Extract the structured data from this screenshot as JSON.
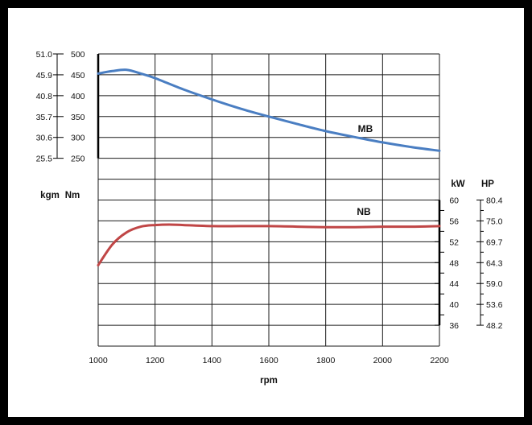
{
  "colors": {
    "frame": "#000000",
    "background": "#ffffff",
    "grid": "#1a1a1a",
    "torque": "#4a7ec2",
    "power": "#c04646"
  },
  "chart_data": {
    "type": "line",
    "title": "",
    "xlabel": "rpm",
    "xlim": [
      1000,
      2200
    ],
    "x_ticks": [
      "1000",
      "1200",
      "1400",
      "1600",
      "1800",
      "2000",
      "2200"
    ],
    "grid": true,
    "torque_axis": {
      "unit_nm": "Nm",
      "unit_kgm": "kgm",
      "nm_range": [
        250,
        500
      ],
      "nm_ticks": [
        "500",
        "450",
        "400",
        "350",
        "300",
        "250"
      ],
      "kgm_ticks": [
        "51.0",
        "45.9",
        "40.8",
        "35.7",
        "30.6",
        "25.5"
      ]
    },
    "power_axis": {
      "unit_kw": "kW",
      "unit_hp": "HP",
      "kw_range": [
        36,
        60
      ],
      "kw_ticks": [
        "60",
        "56",
        "52",
        "48",
        "44",
        "40",
        "36"
      ],
      "hp_ticks": [
        "80.4",
        "75.0",
        "69.7",
        "64.3",
        "59.0",
        "53.6",
        "48.2"
      ]
    },
    "series": [
      {
        "name": "MB",
        "axis": "torque",
        "unit": "Nm",
        "x": [
          1000,
          1050,
          1100,
          1150,
          1200,
          1300,
          1400,
          1500,
          1600,
          1700,
          1800,
          1900,
          2000,
          2100,
          2200
        ],
        "values": [
          453,
          459,
          462,
          453,
          442,
          415,
          391,
          369,
          350,
          332,
          315,
          301,
          288,
          277,
          268
        ]
      },
      {
        "name": "NB",
        "axis": "power",
        "unit": "kW",
        "x": [
          1000,
          1050,
          1100,
          1150,
          1200,
          1250,
          1300,
          1400,
          1500,
          1600,
          1700,
          1800,
          1900,
          2000,
          2100,
          2200
        ],
        "values": [
          47.5,
          51.5,
          53.8,
          54.9,
          55.2,
          55.3,
          55.2,
          55.0,
          55.0,
          55.0,
          54.9,
          54.8,
          54.8,
          54.9,
          54.9,
          55.0
        ]
      }
    ]
  }
}
